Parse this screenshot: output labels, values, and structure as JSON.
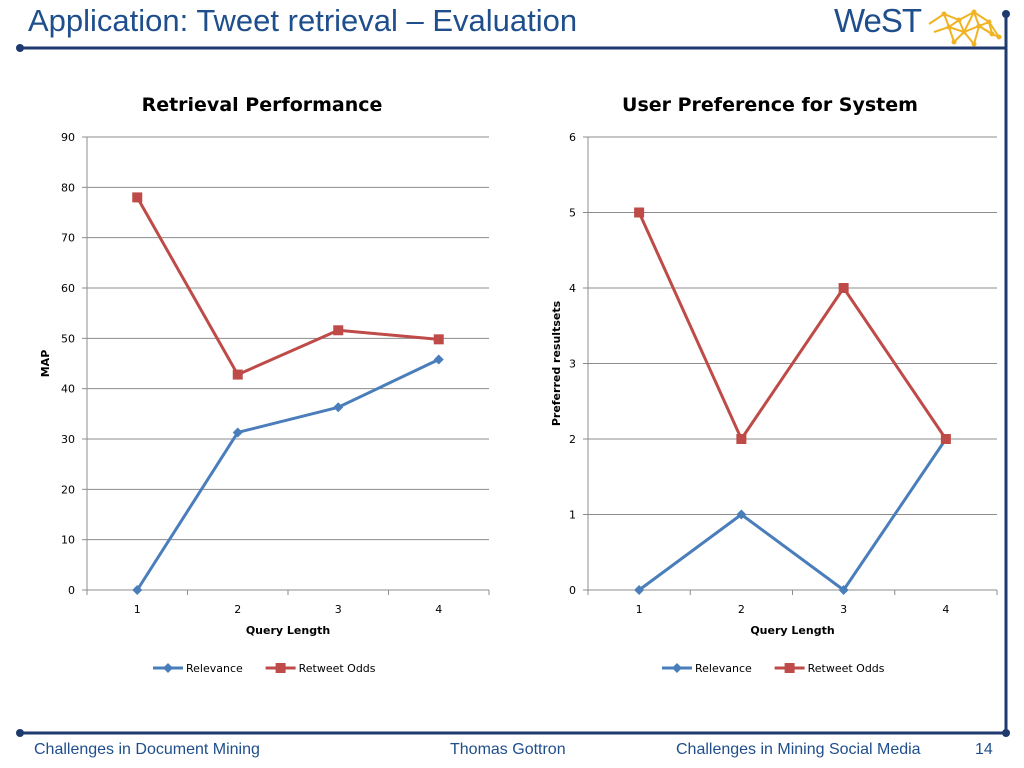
{
  "slide": {
    "title": "Application: Tweet retrieval – Evaluation",
    "logo_text": "WeST",
    "footer_left": "Challenges in Document Mining",
    "footer_center": "Thomas Gottron",
    "footer_right": "Challenges in Mining Social Media",
    "page_number": "14"
  },
  "colors": {
    "title": "#1f4e8c",
    "rule": "#1f3a6e",
    "relevance": "#4a7ebb",
    "retweet_odds": "#be4b48",
    "logo_accent": "#f0b323"
  },
  "chart_data": [
    {
      "type": "line",
      "title": "Retrieval Performance",
      "xlabel": "Query Length",
      "ylabel": "MAP",
      "categories": [
        "1",
        "2",
        "3",
        "4"
      ],
      "ylim": [
        0,
        90
      ],
      "yticks": [
        "0",
        "10",
        "20",
        "30",
        "40",
        "50",
        "60",
        "70",
        "80",
        "90"
      ],
      "grid": true,
      "legend_position": "bottom",
      "series": [
        {
          "name": "Relevance",
          "marker": "diamond",
          "values": [
            0,
            31.3,
            36.3,
            45.8
          ]
        },
        {
          "name": "Retweet Odds",
          "marker": "square",
          "values": [
            78,
            42.8,
            51.6,
            49.8
          ]
        }
      ]
    },
    {
      "type": "line",
      "title": "User Preference for System",
      "xlabel": "Query Length",
      "ylabel": "Preferred resultsets",
      "categories": [
        "1",
        "2",
        "3",
        "4"
      ],
      "ylim": [
        0,
        6
      ],
      "yticks": [
        "0",
        "1",
        "2",
        "3",
        "4",
        "5",
        "6"
      ],
      "grid": true,
      "legend_position": "bottom",
      "series": [
        {
          "name": "Relevance",
          "marker": "diamond",
          "values": [
            0,
            1,
            0,
            2
          ]
        },
        {
          "name": "Retweet Odds",
          "marker": "square",
          "values": [
            5,
            2,
            4,
            2
          ]
        }
      ]
    }
  ]
}
